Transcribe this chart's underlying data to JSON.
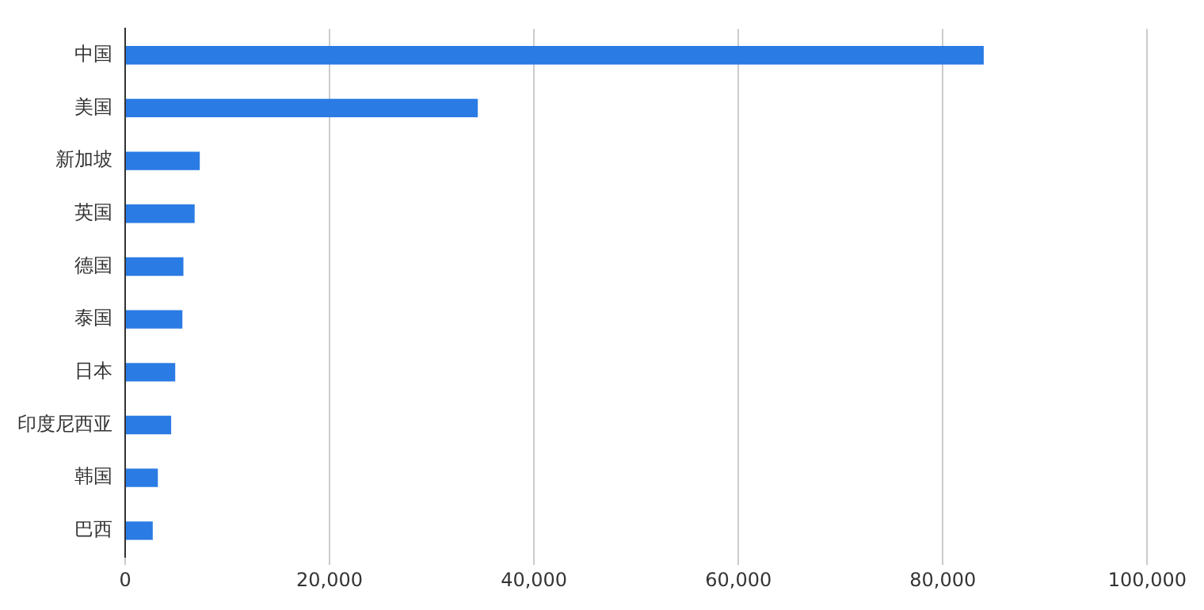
{
  "chart_data": {
    "type": "bar",
    "orientation": "horizontal",
    "categories": [
      "中国",
      "美国",
      "新加坡",
      "英国",
      "德国",
      "泰国",
      "日本",
      "印度尼西亚",
      "韩国",
      "巴西"
    ],
    "values": [
      84000,
      34500,
      7300,
      6800,
      5700,
      5600,
      4900,
      4500,
      3200,
      2700
    ],
    "color": "#2a7be4",
    "xlim": [
      0,
      100000
    ],
    "xticks": [
      0,
      {
        "value": 20000,
        "label": "20,000"
      },
      {
        "value": 40000,
        "label": "40,000"
      },
      {
        "value": 60000,
        "label": "60,000"
      },
      {
        "value": 80000,
        "label": "80,000"
      },
      {
        "value": 100000,
        "label": "100,000"
      }
    ],
    "grid": "x",
    "legend": false
  }
}
